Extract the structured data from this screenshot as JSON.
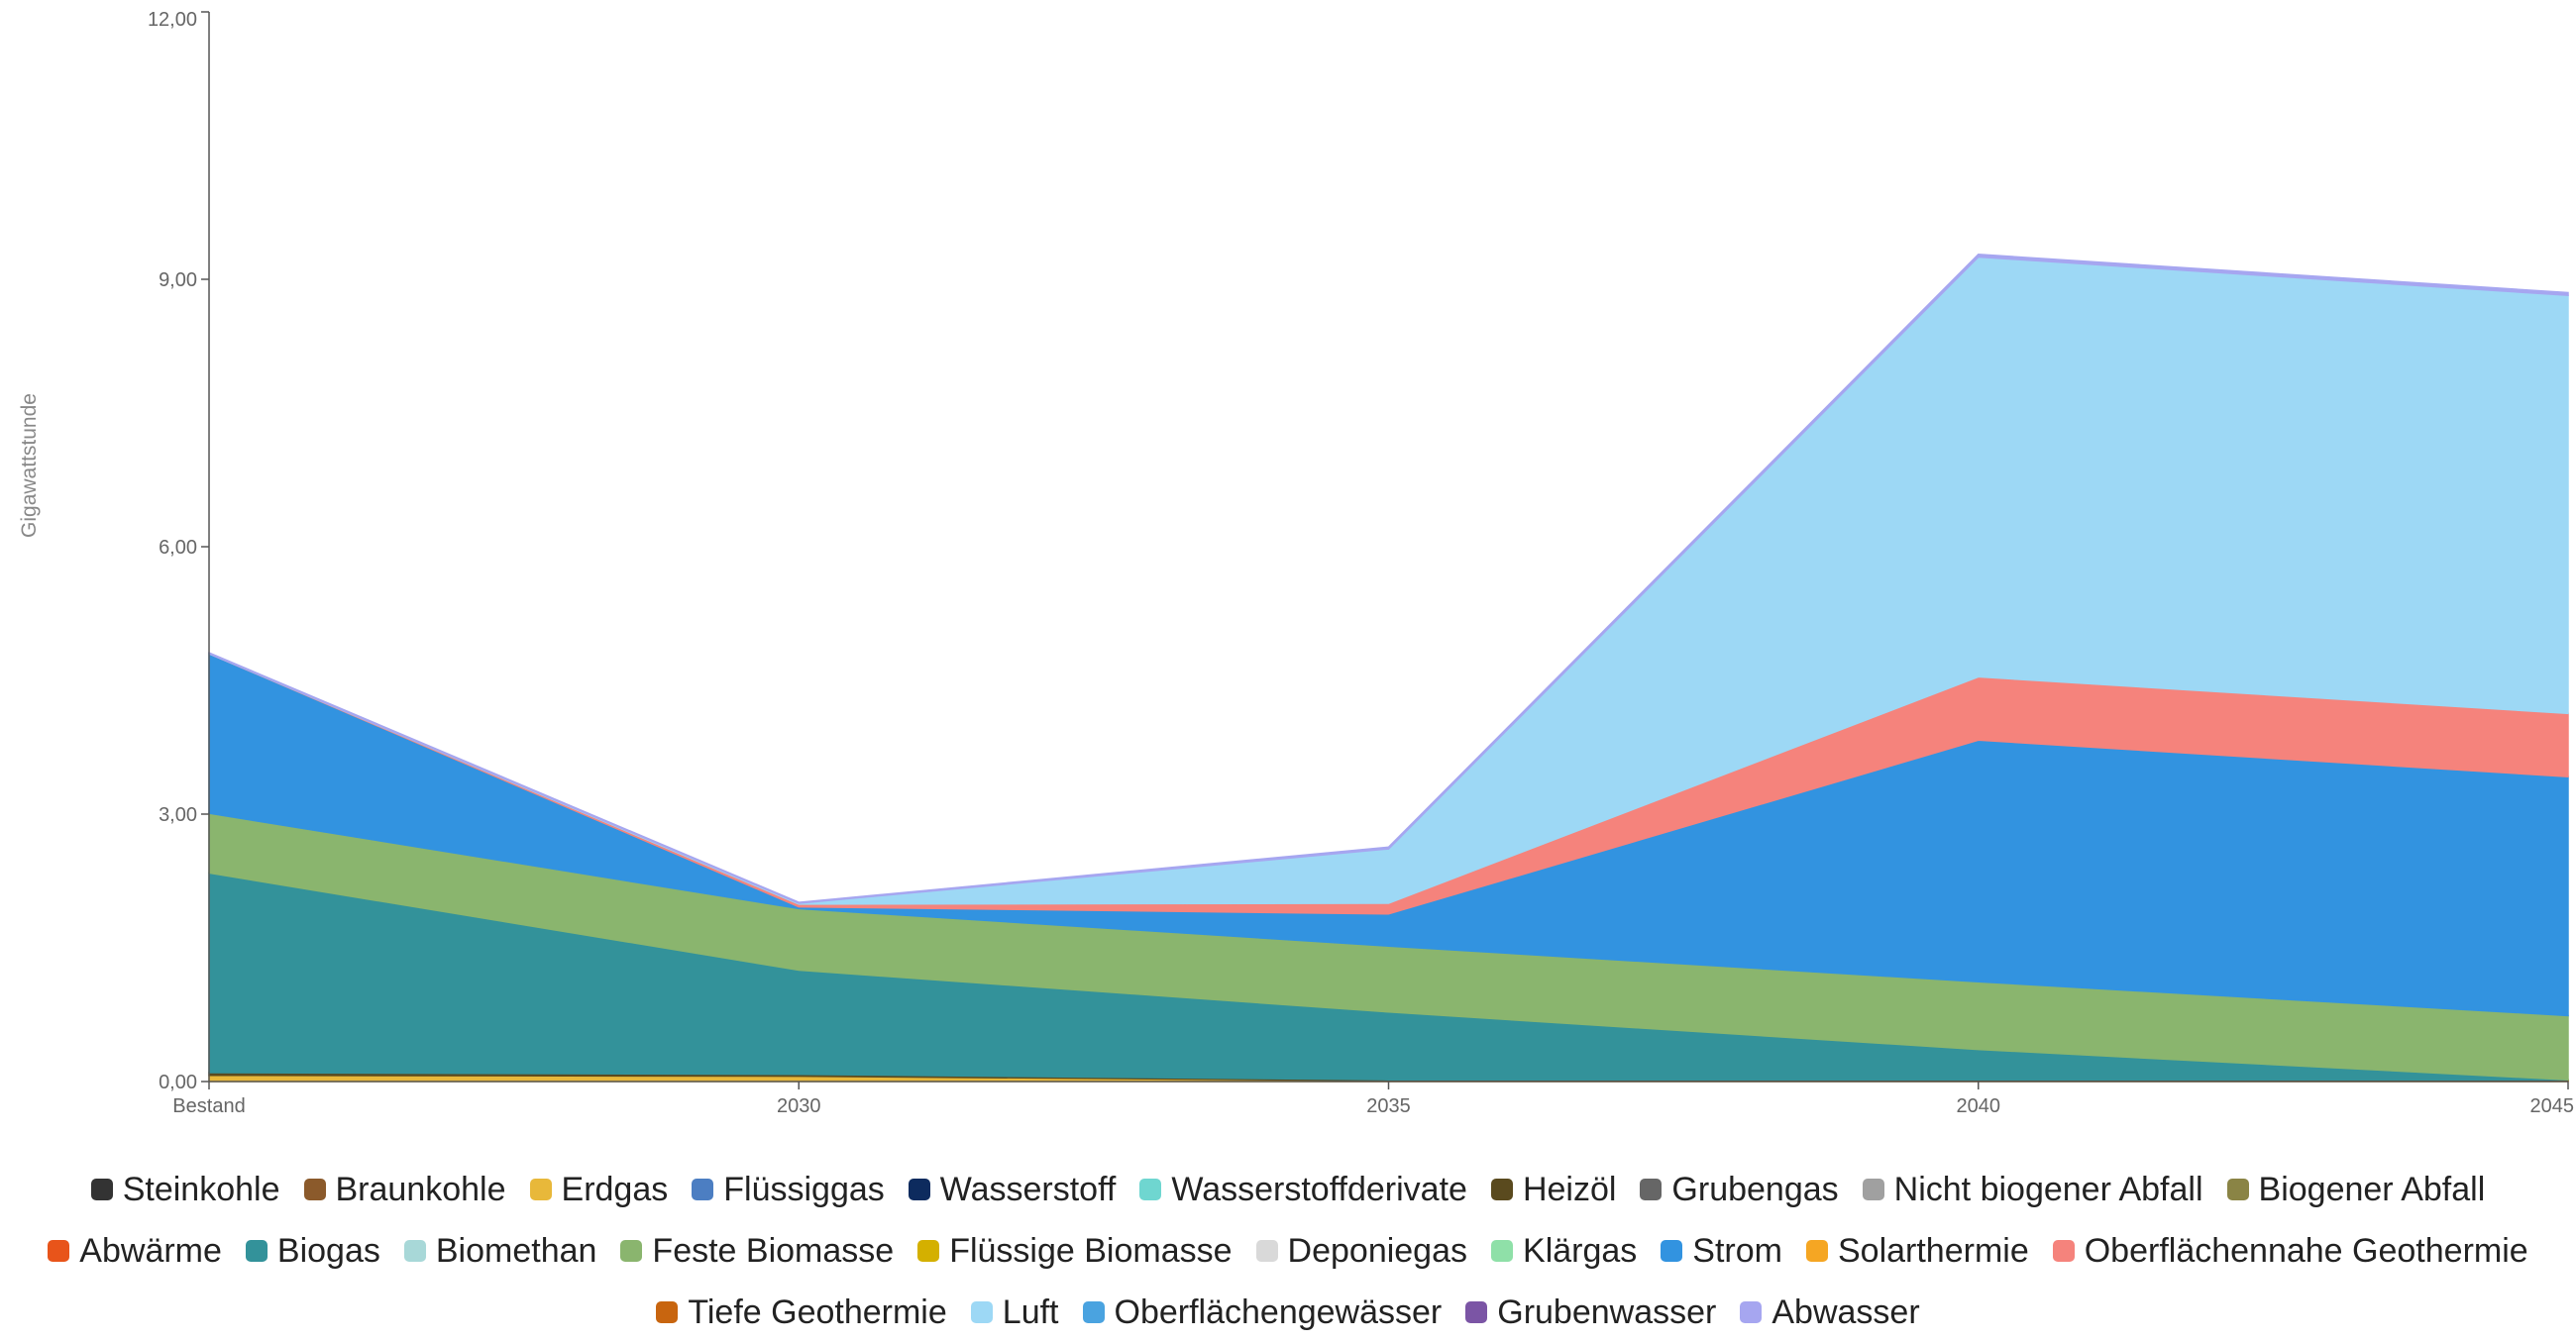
{
  "chart_data": {
    "type": "area",
    "stacked": true,
    "title": "",
    "xlabel": "",
    "ylabel": "Gigawattstunde",
    "categories": [
      "Bestand",
      "2030",
      "2035",
      "2040",
      "2045"
    ],
    "ylim": [
      0,
      12
    ],
    "yticks": [
      "0,00",
      "3,00",
      "6,00",
      "9,00",
      "12,00"
    ],
    "grid": false,
    "legend_position": "bottom",
    "series": [
      {
        "name": "Steinkohle",
        "color": "#333333",
        "values": [
          0,
          0,
          0,
          0,
          0
        ]
      },
      {
        "name": "Braunkohle",
        "color": "#8B5A2B",
        "values": [
          0,
          0,
          0,
          0,
          0
        ]
      },
      {
        "name": "Erdgas",
        "color": "#E8B83A",
        "values": [
          0.07,
          0.06,
          0.01,
          0.01,
          0.01
        ]
      },
      {
        "name": "Flüssiggas",
        "color": "#4C7EC2",
        "values": [
          0,
          0,
          0,
          0,
          0
        ]
      },
      {
        "name": "Wasserstoff",
        "color": "#0D2B5E",
        "values": [
          0,
          0,
          0,
          0,
          0
        ]
      },
      {
        "name": "Wasserstoffderivate",
        "color": "#6FD6D0",
        "values": [
          0,
          0,
          0,
          0,
          0
        ]
      },
      {
        "name": "Heizöl",
        "color": "#5A4A1E",
        "values": [
          0.03,
          0.02,
          0.01,
          0.01,
          0.01
        ]
      },
      {
        "name": "Grubengas",
        "color": "#666666",
        "values": [
          0,
          0,
          0,
          0,
          0
        ]
      },
      {
        "name": "Nicht biogener Abfall",
        "color": "#A0A0A0",
        "values": [
          0,
          0,
          0,
          0,
          0
        ]
      },
      {
        "name": "Biogener Abfall",
        "color": "#8A8445",
        "values": [
          0,
          0,
          0,
          0,
          0
        ]
      },
      {
        "name": "Abwärme",
        "color": "#E8541A",
        "values": [
          0,
          0,
          0,
          0,
          0
        ]
      },
      {
        "name": "Biogas",
        "color": "#33929A",
        "values": [
          2.24,
          1.17,
          0.76,
          0.34,
          0
        ]
      },
      {
        "name": "Biomethan",
        "color": "#A8D8D8",
        "values": [
          0,
          0,
          0,
          0,
          0
        ]
      },
      {
        "name": "Feste Biomasse",
        "color": "#8AB56E",
        "values": [
          0.67,
          0.69,
          0.74,
          0.76,
          0.72
        ]
      },
      {
        "name": "Flüssige Biomasse",
        "color": "#D4B000",
        "values": [
          0,
          0,
          0,
          0,
          0
        ]
      },
      {
        "name": "Deponiegas",
        "color": "#D9D9D9",
        "values": [
          0,
          0,
          0,
          0,
          0
        ]
      },
      {
        "name": "Klärgas",
        "color": "#8FE0A8",
        "values": [
          0,
          0,
          0,
          0,
          0
        ]
      },
      {
        "name": "Strom",
        "color": "#3293E0",
        "values": [
          1.79,
          0.02,
          0.36,
          2.71,
          2.68
        ]
      },
      {
        "name": "Solarthermie",
        "color": "#F5A623",
        "values": [
          0,
          0,
          0,
          0,
          0
        ]
      },
      {
        "name": "Oberflächennahe Geothermie",
        "color": "#F5837C",
        "values": [
          0,
          0.03,
          0.12,
          0.71,
          0.71
        ]
      },
      {
        "name": "Tiefe Geothermie",
        "color": "#C8650F",
        "values": [
          0,
          0,
          0,
          0,
          0
        ]
      },
      {
        "name": "Luft",
        "color": "#9DD8F5",
        "values": [
          0,
          0.01,
          0.61,
          4.71,
          4.69
        ]
      },
      {
        "name": "Oberflächengewässer",
        "color": "#4AA3E0",
        "values": [
          0,
          0,
          0,
          0,
          0
        ]
      },
      {
        "name": "Grubenwasser",
        "color": "#7B55A5",
        "values": [
          0,
          0,
          0,
          0,
          0
        ]
      },
      {
        "name": "Abwasser",
        "color": "#A6A6F0",
        "values": [
          0.01,
          0.01,
          0.02,
          0.03,
          0.03
        ]
      }
    ],
    "legend_rows": [
      [
        "Steinkohle",
        "Braunkohle",
        "Erdgas",
        "Flüssiggas",
        "Wasserstoff",
        "Wasserstoffderivate",
        "Heizöl",
        "Grubengas",
        "Nicht biogener Abfall",
        "Biogener Abfall"
      ],
      [
        "Abwärme",
        "Biogas",
        "Biomethan",
        "Feste Biomasse",
        "Flüssige Biomasse",
        "Deponiegas",
        "Klärgas",
        "Strom",
        "Solarthermie",
        "Oberflächennahe Geothermie"
      ],
      [
        "Tiefe Geothermie",
        "Luft",
        "Oberflächengewässer",
        "Grubenwasser",
        "Abwasser"
      ]
    ]
  }
}
